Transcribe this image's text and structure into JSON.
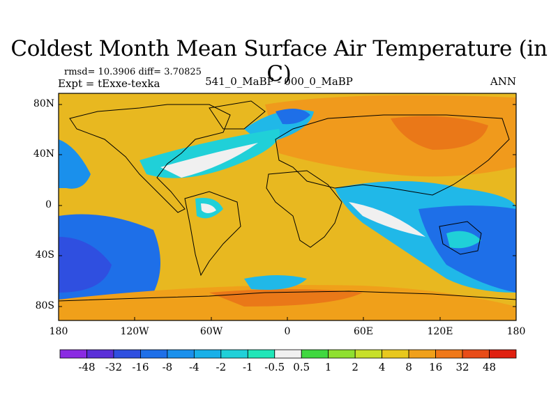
{
  "title": "Coldest Month Mean Surface Air Temperature (in C)",
  "stats": "rmsd= 10.3906 diff= 3.70825",
  "expt": "Expt = tExxe-texka",
  "experiment_name": "541_0_MaBP - 000_0_MaBP",
  "season": "ANN",
  "lat_labels": [
    "80N",
    "40N",
    "0",
    "40S",
    "80S"
  ],
  "lon_labels": [
    "180",
    "120W",
    "60W",
    "0",
    "60E",
    "120E",
    "180"
  ],
  "colorbar": {
    "labels": [
      "-48",
      "-32",
      "-16",
      "-8",
      "-4",
      "-2",
      "-1",
      "-0.5",
      "0.5",
      "1",
      "2",
      "4",
      "8",
      "16",
      "32",
      "48"
    ],
    "colors": [
      "#8a2be2",
      "#5a2fd8",
      "#2f4fe0",
      "#1e6fe8",
      "#1a90ec",
      "#18b0e8",
      "#20d0d8",
      "#20e6b8",
      "#f0f0f0",
      "#40d840",
      "#8fe030",
      "#c8e02a",
      "#e8c81e",
      "#f0a01a",
      "#f07818",
      "#e84c18",
      "#e02010"
    ]
  }
}
